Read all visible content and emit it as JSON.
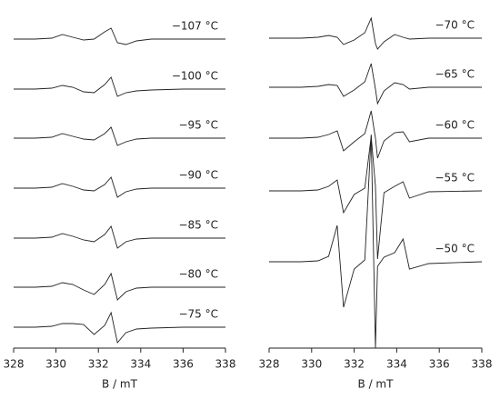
{
  "chart_data": [
    {
      "type": "line",
      "xlabel": "B / mT",
      "xlim": [
        328,
        338
      ],
      "xticks": [
        328,
        330,
        332,
        334,
        336,
        338
      ],
      "x": [
        328,
        329,
        329.8,
        330.3,
        330.8,
        331.3,
        331.8,
        332.3,
        332.6,
        332.9,
        333.3,
        333.8,
        334.5,
        336,
        338
      ],
      "series": [
        {
          "name": "−107 °C",
          "color": "#222222",
          "values": [
            0,
            0,
            1,
            5,
            2,
            -1,
            0,
            8,
            12,
            -4,
            -6,
            -2,
            0,
            0,
            0
          ]
        },
        {
          "name": "−100 °C",
          "color": "#222222",
          "values": [
            0,
            0,
            1,
            4,
            2,
            -3,
            -4,
            5,
            13,
            -8,
            -4,
            -2,
            -1,
            0,
            0
          ]
        },
        {
          "name": "−95 °C",
          "color": "#222222",
          "values": [
            0,
            0,
            1,
            5,
            2,
            -1,
            -2,
            5,
            12,
            -8,
            -4,
            -1,
            0,
            0,
            0
          ]
        },
        {
          "name": "−90 °C",
          "color": "#222222",
          "values": [
            0,
            0,
            1,
            5,
            2,
            -2,
            -3,
            4,
            12,
            -10,
            -4,
            -1,
            0,
            0,
            0
          ]
        },
        {
          "name": "−85 °C",
          "color": "#222222",
          "values": [
            0,
            0,
            1,
            5,
            2,
            -2,
            -4,
            4,
            13,
            -11,
            -4,
            -1,
            0,
            0,
            0
          ]
        },
        {
          "name": "−80 °C",
          "color": "#222222",
          "values": [
            0,
            0,
            1,
            5,
            3,
            -3,
            -8,
            3,
            15,
            -14,
            -5,
            -1,
            0,
            0,
            0
          ]
        },
        {
          "name": "−75 °C",
          "color": "#222222",
          "values": [
            0,
            0,
            1,
            4,
            4,
            3,
            -8,
            2,
            16,
            -17,
            -6,
            -2,
            -1,
            0,
            0
          ]
        }
      ]
    },
    {
      "type": "line",
      "xlabel": "B / mT",
      "xlim": [
        328,
        338
      ],
      "xticks": [
        328,
        330,
        332,
        334,
        336,
        338
      ],
      "x": [
        328,
        329.5,
        330.3,
        330.8,
        331.2,
        331.5,
        332.0,
        332.5,
        332.8,
        333.0,
        333.1,
        333.4,
        333.9,
        334.3,
        334.6,
        335.5,
        338
      ],
      "series": [
        {
          "name": "−70 °C",
          "color": "#222222",
          "values": [
            0,
            0,
            1,
            3,
            1,
            -7,
            -2,
            6,
            22,
            -6,
            -12,
            -4,
            4,
            1,
            -1,
            0,
            0
          ]
        },
        {
          "name": "−65 °C",
          "color": "#222222",
          "values": [
            0,
            0,
            1,
            3,
            2,
            -10,
            -3,
            6,
            26,
            -2,
            -18,
            -4,
            5,
            3,
            -2,
            0,
            0
          ]
        },
        {
          "name": "−60 °C",
          "color": "#222222",
          "values": [
            0,
            0,
            1,
            4,
            8,
            -14,
            -4,
            5,
            30,
            0,
            -22,
            -3,
            6,
            7,
            -4,
            0,
            0
          ]
        },
        {
          "name": "−55 °C",
          "color": "#222222",
          "values": [
            0,
            0,
            1,
            5,
            12,
            -24,
            -4,
            3,
            60,
            5,
            -75,
            -2,
            5,
            10,
            -8,
            -1,
            0
          ]
        },
        {
          "name": "−50 °C",
          "color": "#222222",
          "values": [
            0,
            0,
            1,
            6,
            40,
            -50,
            -8,
            2,
            140,
            -95,
            -5,
            5,
            10,
            25,
            -8,
            -2,
            0
          ]
        }
      ]
    }
  ]
}
